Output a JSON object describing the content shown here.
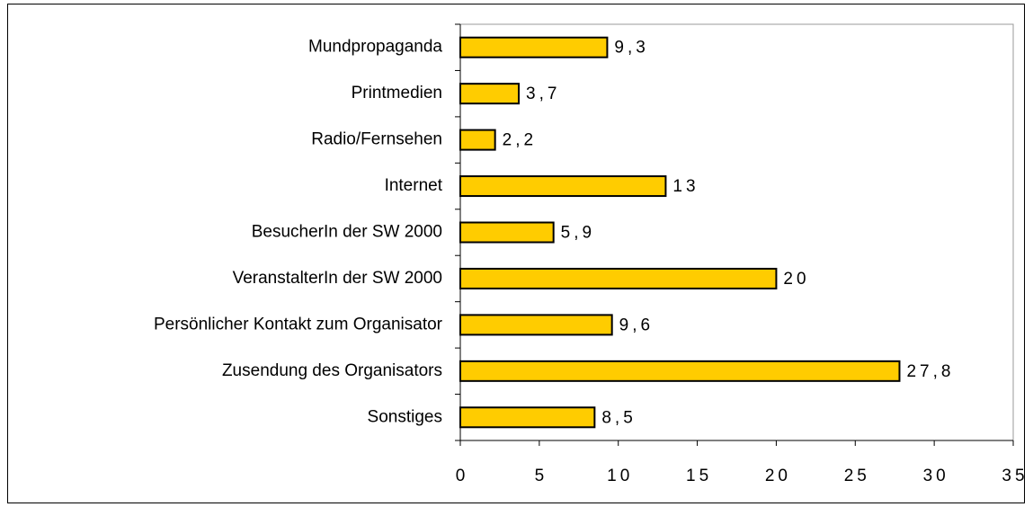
{
  "chart_data": {
    "type": "bar",
    "orientation": "horizontal",
    "categories": [
      "Mundpropaganda",
      "Printmedien",
      "Radio/Fernsehen",
      "Internet",
      "BesucherIn der SW 2000",
      "VeranstalterIn der SW 2000",
      "Persönlicher Kontakt zum Organisator",
      "Zusendung des Organisators",
      "Sonstiges"
    ],
    "values": [
      9.3,
      3.7,
      2.2,
      13,
      5.9,
      20,
      9.6,
      27.8,
      8.5
    ],
    "value_labels": [
      "9,3",
      "3,7",
      "2,2",
      "13",
      "5,9",
      "20",
      "9,6",
      "27,8",
      "8,5"
    ],
    "color": "#ffcc00",
    "xlim": [
      0,
      35
    ],
    "xticks": [
      0,
      5,
      10,
      15,
      20,
      25,
      30,
      35
    ]
  }
}
